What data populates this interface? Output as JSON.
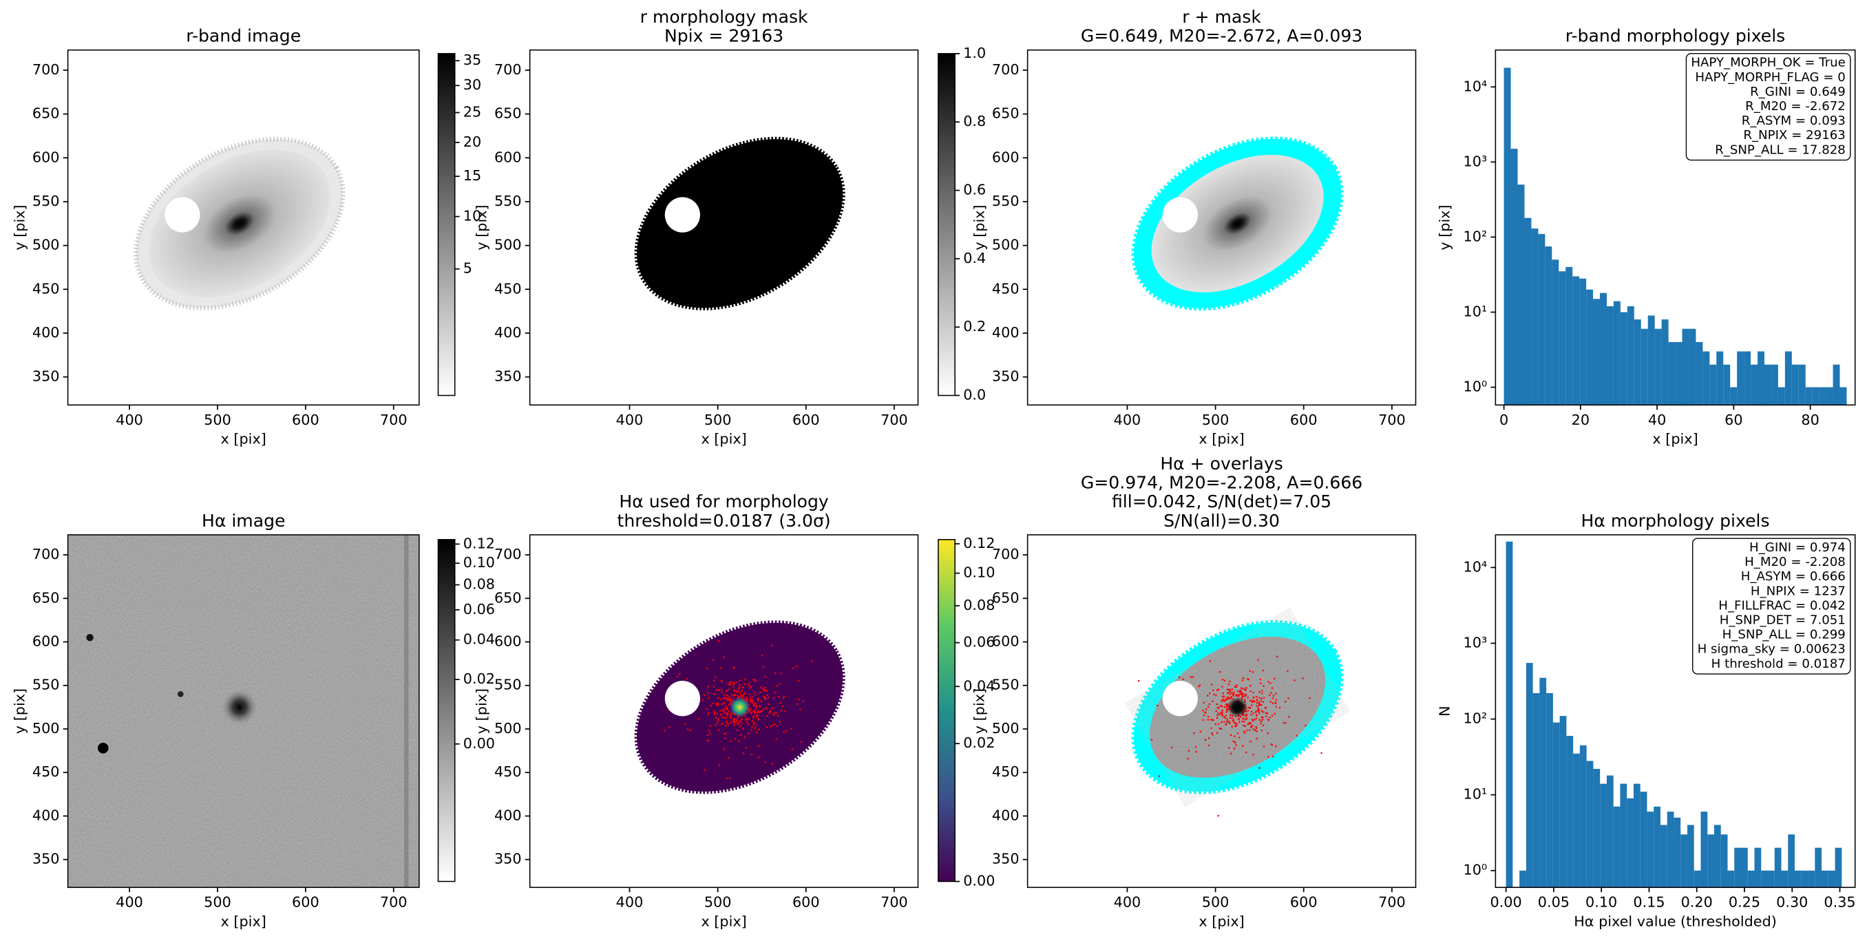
{
  "chart_data": [
    {
      "type": "image",
      "view": "image",
      "cmap": "gray_r",
      "overlays": [],
      "title": [
        "r-band image"
      ],
      "xlabel": "x [pix]",
      "ylabel": "y [pix]",
      "xlim": [
        330,
        729
      ],
      "ylim": [
        318,
        723
      ],
      "xticks": [
        400,
        500,
        600,
        700
      ],
      "yticks": [
        350,
        400,
        450,
        500,
        550,
        600,
        650,
        700
      ],
      "colorbar": {
        "lim": [
          0,
          36.5
        ],
        "power": 0.5,
        "ticks": [
          5,
          10,
          15,
          20,
          25,
          30,
          35
        ]
      }
    },
    {
      "type": "image",
      "view": "mask",
      "cmap": "gray_r",
      "overlays": [],
      "title": [
        "r morphology mask",
        "Npix = 29163"
      ],
      "xlabel": "x [pix]",
      "ylabel": "y [pix]",
      "xlim": [
        287,
        727
      ],
      "ylim": [
        318,
        723
      ],
      "xticks": [
        400,
        500,
        600,
        700
      ],
      "yticks": [
        350,
        400,
        450,
        500,
        550,
        600,
        650,
        700
      ],
      "colorbar": {
        "lim": [
          0,
          1
        ],
        "power": 1,
        "ticks": [
          {
            "value": 0,
            "label": "0.0"
          },
          0.2,
          0.4,
          0.6,
          0.8,
          {
            "value": 1,
            "label": "1.0"
          }
        ]
      }
    },
    {
      "type": "image",
      "view": "image",
      "cmap": "gray_r",
      "overlays": [
        "cyan"
      ],
      "title": [
        "r + mask",
        "G=0.649, M20=-2.672, A=0.093"
      ],
      "xlabel": "x [pix]",
      "ylabel": "y [pix]",
      "xlim": [
        287,
        727
      ],
      "ylim": [
        318,
        723
      ],
      "xticks": [
        400,
        500,
        600,
        700
      ],
      "yticks": [
        350,
        400,
        450,
        500,
        550,
        600,
        650,
        700
      ]
    },
    {
      "type": "histogram",
      "color": "#1f77b4",
      "log_y": true,
      "title": [
        "r-band morphology pixels"
      ],
      "xlabel": "x [pix]",
      "ylabel": "y [pix]",
      "xlim": [
        -2.2,
        91.7
      ],
      "ylim": [
        0.58,
        31000
      ],
      "xticks": [
        0,
        20,
        40,
        60,
        80
      ],
      "yticks": [
        {
          "value": 1,
          "label": "10⁰"
        },
        {
          "value": 10,
          "label": "10¹"
        },
        {
          "value": 100,
          "label": "10²"
        },
        {
          "value": 1000,
          "label": "10³"
        },
        {
          "value": 10000,
          "label": "10⁴"
        }
      ],
      "bins": [
        0,
        1.79,
        3.58,
        5.37,
        7.16,
        8.95,
        10.74,
        12.53,
        14.32,
        16.11,
        17.9,
        19.69,
        21.48,
        23.27,
        25.06,
        26.85,
        28.64,
        30.43,
        32.22,
        34.01,
        35.8,
        37.59,
        39.38,
        41.17,
        42.96,
        44.75,
        46.54,
        48.33,
        50.12,
        51.91,
        53.7,
        55.49,
        57.28,
        59.07,
        60.86,
        62.65,
        64.44,
        66.23,
        68.02,
        69.81,
        71.6,
        73.39,
        75.18,
        76.97,
        78.76,
        80.55,
        82.34,
        84.13,
        85.92,
        87.71,
        89.5
      ],
      "values": [
        18000,
        1500,
        500,
        180,
        130,
        110,
        75,
        50,
        35,
        40,
        30,
        28,
        20,
        15,
        18,
        12,
        14,
        10,
        12,
        8,
        6,
        9,
        6,
        8,
        4,
        4,
        6,
        6,
        4,
        3,
        2,
        3,
        2,
        1,
        3,
        3,
        2,
        3,
        2,
        2,
        1,
        3,
        2,
        2,
        1,
        1,
        1,
        1,
        2,
        1
      ],
      "annotation": [
        "HAPY_MORPH_OK = True",
        "HAPY_MORPH_FLAG = 0",
        "R_GINI = 0.649",
        "R_M20 = -2.672",
        "R_ASYM = 0.093",
        "R_NPIX = 29163",
        "R_SNP_ALL = 17.828"
      ]
    },
    {
      "type": "image",
      "view": "field",
      "cmap": "gray_r",
      "overlays": [],
      "title": [
        "Hα image"
      ],
      "xlabel": "x [pix]",
      "ylabel": "y [pix]",
      "xlim": [
        330,
        729
      ],
      "ylim": [
        318,
        723
      ],
      "xticks": [
        400,
        500,
        600,
        700
      ],
      "yticks": [
        350,
        400,
        450,
        500,
        550,
        600,
        650,
        700
      ],
      "colorbar": {
        "lim": [
          -0.01,
          0.125
        ],
        "power": 0.35,
        "ticks": [
          {
            "value": 0,
            "label": "0.00"
          },
          0.02,
          0.04,
          0.06,
          0.08,
          {
            "value": 0.1,
            "label": "0.10"
          },
          0.12
        ]
      }
    },
    {
      "type": "image",
      "view": "mask",
      "cmap": "viridis",
      "overlays": [
        "red"
      ],
      "title": [
        "Hα used for morphology",
        "threshold=0.0187 (3.0σ)"
      ],
      "xlabel": "x [pix]",
      "ylabel": "y [pix]",
      "xlim": [
        287,
        727
      ],
      "ylim": [
        318,
        723
      ],
      "xticks": [
        400,
        500,
        600,
        700
      ],
      "yticks": [
        350,
        400,
        450,
        500,
        550,
        600,
        650,
        700
      ],
      "colorbar": {
        "lim": [
          0,
          0.123
        ],
        "power": 0.5,
        "ticks": [
          {
            "value": 0,
            "label": "0.00"
          },
          0.02,
          0.04,
          0.06,
          0.08,
          {
            "value": 0.1,
            "label": "0.10"
          },
          0.12
        ]
      }
    },
    {
      "type": "image",
      "view": "image",
      "cmap": "gray_r",
      "overlays": [
        "cyan",
        "red"
      ],
      "title": [
        "Hα + overlays",
        "G=0.974, M20=-2.208, A=0.666",
        "fill=0.042, S/N(det)=7.05",
        "S/N(all)=0.30"
      ],
      "xlabel": "x [pix]",
      "ylabel": "y [pix]",
      "xlim": [
        287,
        727
      ],
      "ylim": [
        318,
        723
      ],
      "xticks": [
        400,
        500,
        600,
        700
      ],
      "yticks": [
        350,
        400,
        450,
        500,
        550,
        600,
        650,
        700
      ]
    },
    {
      "type": "histogram",
      "color": "#1f77b4",
      "log_y": true,
      "title": [
        "Hα morphology pixels"
      ],
      "xlabel": "Hα pixel value (thresholded)",
      "ylabel": "N",
      "xlim": [
        -0.011,
        0.366
      ],
      "ylim": [
        0.6,
        27000
      ],
      "xticks": [
        {
          "value": 0,
          "label": "0.00"
        },
        0.05,
        {
          "value": 0.1,
          "label": "0.10"
        },
        0.15,
        {
          "value": 0.2,
          "label": "0.20"
        },
        0.25,
        {
          "value": 0.3,
          "label": "0.30"
        },
        0.35
      ],
      "yticks": [
        {
          "value": 1,
          "label": "10⁰"
        },
        {
          "value": 10,
          "label": "10¹"
        },
        {
          "value": 100,
          "label": "10²"
        },
        {
          "value": 1000,
          "label": "10³"
        },
        {
          "value": 10000,
          "label": "10⁴"
        }
      ],
      "bins": [
        0,
        0.00704,
        0.01408,
        0.02112,
        0.02816,
        0.0352,
        0.04224,
        0.04928,
        0.05632,
        0.06336,
        0.0704,
        0.07744,
        0.08448,
        0.09152,
        0.09856,
        0.1056,
        0.11264,
        0.11968,
        0.12672,
        0.13376,
        0.1408,
        0.14784,
        0.15488,
        0.16192,
        0.16896,
        0.176,
        0.18304,
        0.19008,
        0.19712,
        0.20416,
        0.2112,
        0.21824,
        0.22528,
        0.23232,
        0.23936,
        0.2464,
        0.25344,
        0.26048,
        0.26752,
        0.27456,
        0.2816,
        0.28864,
        0.29568,
        0.30272,
        0.30976,
        0.3168,
        0.32384,
        0.33088,
        0.33792,
        0.34496,
        0.352
      ],
      "values": [
        22000,
        0,
        1,
        550,
        220,
        350,
        220,
        90,
        110,
        60,
        35,
        45,
        28,
        22,
        14,
        18,
        7,
        14,
        9,
        14,
        11,
        6,
        7,
        4,
        6,
        5,
        3,
        4,
        1,
        6,
        3,
        4,
        3,
        1,
        2,
        2,
        1,
        2,
        1,
        1,
        2,
        1,
        3,
        1,
        1,
        1,
        2,
        1,
        1,
        2
      ],
      "annotation": [
        "H_GINI = 0.974",
        "H_M20 = -2.208",
        "H_ASYM = 0.666",
        "H_NPIX = 1237",
        "H_FILLFRAC = 0.042",
        "H_SNP_DET = 7.051",
        "H_SNP_ALL = 0.299",
        "H sigma_sky = 0.00623",
        "H threshold = 0.0187"
      ]
    }
  ]
}
